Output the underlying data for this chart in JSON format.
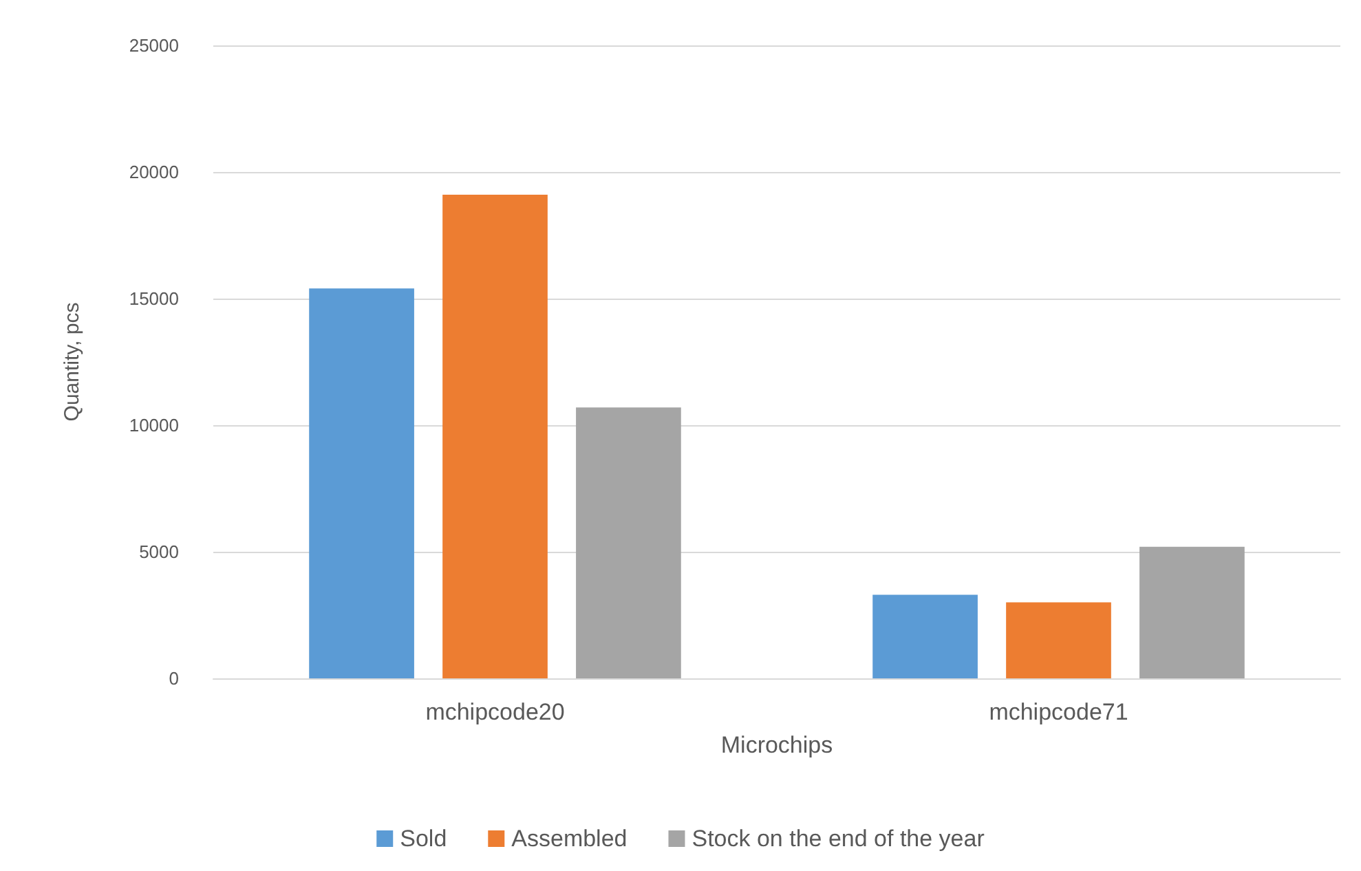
{
  "chart_data": {
    "type": "bar",
    "xlabel": "Microchips",
    "ylabel": "Quantity, pcs",
    "categories": [
      "mchipcode20",
      "mchipcode71"
    ],
    "series": [
      {
        "name": "Sold",
        "color": "#5b9bd5",
        "values": [
          15400,
          3300
        ]
      },
      {
        "name": "Assembled",
        "color": "#ed7d31",
        "values": [
          19100,
          3000
        ]
      },
      {
        "name": "Stock on the end of the year",
        "color": "#a5a5a5",
        "values": [
          10700,
          5200
        ]
      }
    ],
    "ylim": [
      0,
      25000
    ],
    "yticks": [
      0,
      5000,
      10000,
      15000,
      20000,
      25000
    ],
    "grid": "y",
    "legend": "bottom"
  }
}
